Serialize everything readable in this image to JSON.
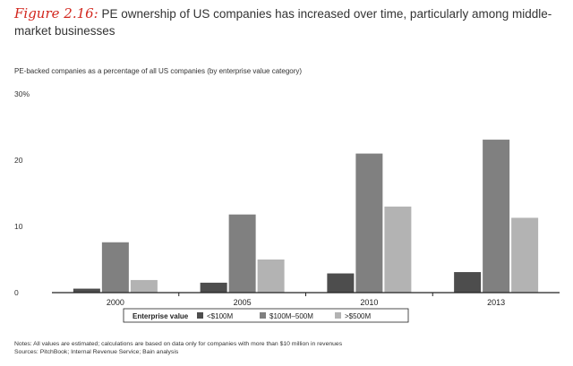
{
  "figure": {
    "label": "Figure 2.16:",
    "title": "PE ownership of US companies has increased over time, particularly among middle-market businesses",
    "subtitle": "PE-backed companies as a percentage of all US companies (by enterprise value category)"
  },
  "notes": {
    "line1": "Notes: All values are estimated; calculations are based on data only for companies with more than $10 million in revenues",
    "line2": "Sources: PitchBook; Internal Revenue Service; Bain analysis"
  },
  "legend": {
    "title": "Enterprise value"
  },
  "chart_data": {
    "type": "bar",
    "categories": [
      "2000",
      "2005",
      "2010",
      "2013"
    ],
    "series": [
      {
        "name": "<$100M",
        "values": [
          0.6,
          1.5,
          2.9,
          3.1
        ],
        "color": "#4d4d4d"
      },
      {
        "name": "$100M–500M",
        "values": [
          7.6,
          11.8,
          21.0,
          23.1
        ],
        "color": "#808080"
      },
      {
        "name": ">$500M",
        "values": [
          1.9,
          5.0,
          13.0,
          11.3
        ],
        "color": "#b3b3b3"
      }
    ],
    "y_ticks": [
      "0",
      "10",
      "20",
      "30%"
    ],
    "ylim": [
      0,
      30
    ],
    "grid": false,
    "legend_position": "bottom"
  }
}
